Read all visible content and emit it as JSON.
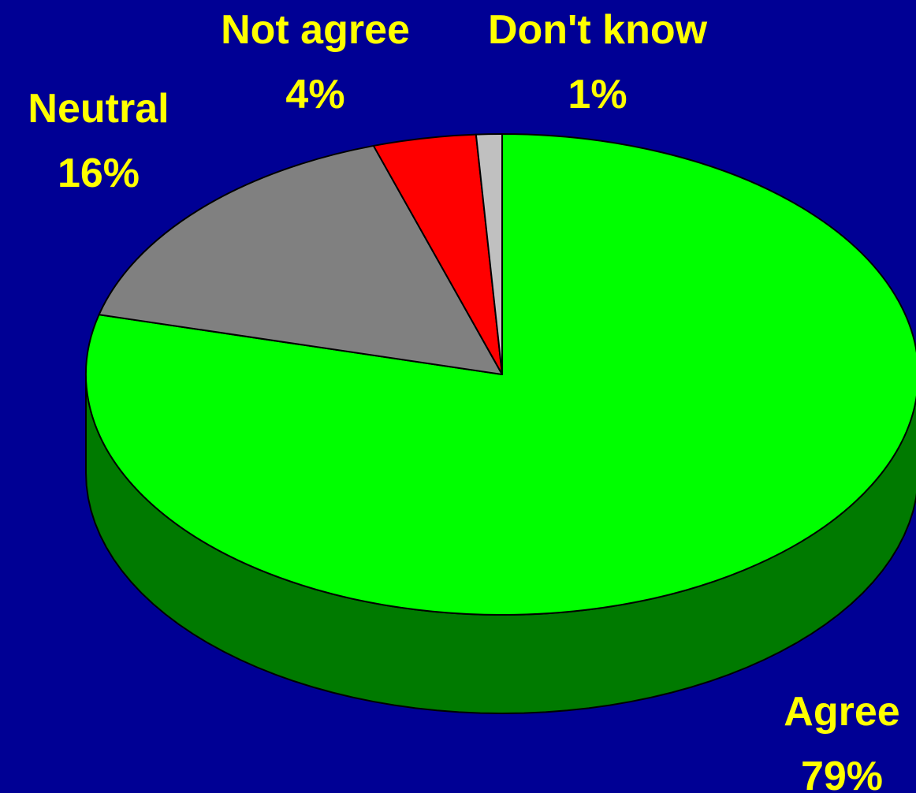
{
  "chart_data": {
    "type": "pie",
    "style": "3d",
    "categories": [
      "Agree",
      "Neutral",
      "Not agree",
      "Don't know"
    ],
    "values": [
      79,
      16,
      4,
      1
    ],
    "value_labels": [
      "79%",
      "16%",
      "4%",
      "1%"
    ],
    "colors": [
      "#00FF00",
      "#808080",
      "#FF0000",
      "#C0C0C0"
    ],
    "side_colors": [
      "#007A00",
      "#404040",
      "#7A0000",
      "#606060"
    ],
    "start_angle_deg": 90,
    "direction": "clockwise",
    "background": "#000094",
    "label_color": "#FFFF00"
  }
}
